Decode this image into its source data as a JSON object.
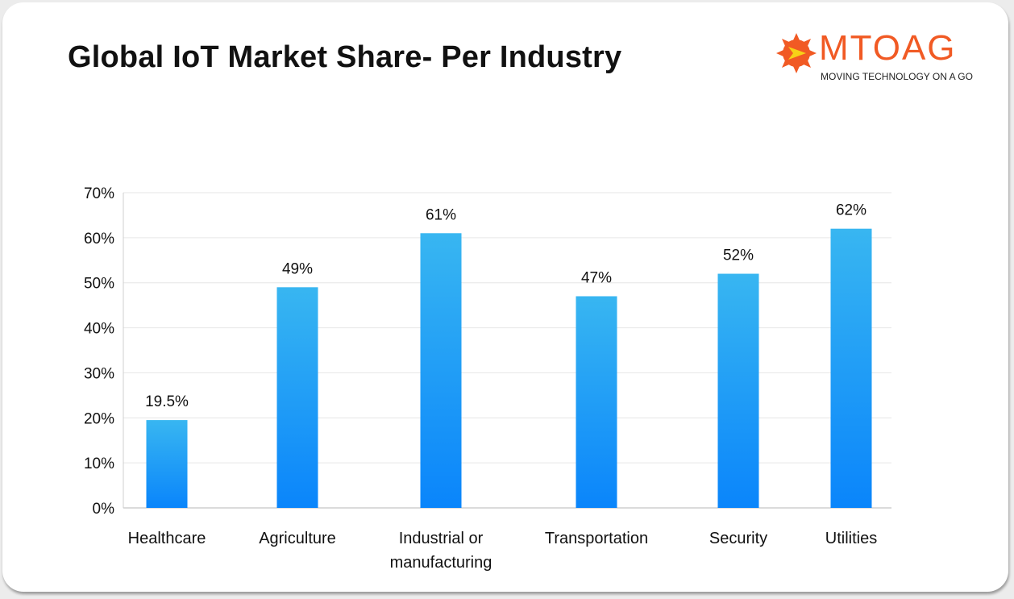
{
  "title": "Global IoT Market Share- Per Industry",
  "logo": {
    "wordmark": "MTOAG",
    "tagline": "MOVING TECHNOLOGY ON A GO",
    "color": "#f15a24"
  },
  "chart_data": {
    "type": "bar",
    "title": "Global IoT Market Share- Per Industry",
    "xlabel": "",
    "ylabel": "",
    "categories": [
      "Healthcare",
      "Agriculture",
      "Industrial or manufacturing",
      "Transportation",
      "Security",
      "Utilities"
    ],
    "category_lines": [
      [
        "Healthcare"
      ],
      [
        "Agriculture"
      ],
      [
        "Industrial or",
        "manufacturing"
      ],
      [
        "Transportation"
      ],
      [
        "Security"
      ],
      [
        "Utilities"
      ]
    ],
    "values": [
      19.5,
      49,
      61,
      47,
      52,
      62
    ],
    "data_labels": [
      "19.5%",
      "49%",
      "61%",
      "47%",
      "52%",
      "62%"
    ],
    "ylim": [
      0,
      70
    ],
    "yticks": [
      0,
      10,
      20,
      30,
      40,
      50,
      60,
      70
    ],
    "ytick_labels": [
      "0%",
      "10%",
      "20%",
      "30%",
      "40%",
      "50%",
      "60%",
      "70%"
    ],
    "grid": true,
    "colors": {
      "bar_top": "#38b6f1",
      "bar_bottom": "#0a85fb",
      "grid": "#e6e6e6",
      "axis": "#cfcfcf"
    }
  }
}
